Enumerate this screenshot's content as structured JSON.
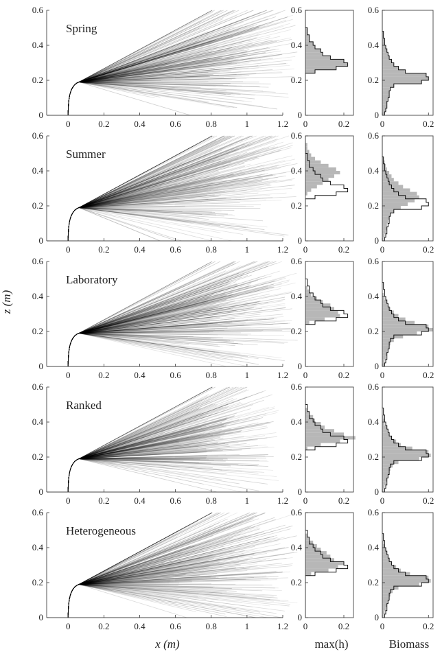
{
  "figure": {
    "ylabel": "z (m)",
    "xlabel": "x (m)",
    "hist_labels": [
      "max(h)",
      "Biomass"
    ]
  },
  "chart_data": [
    {
      "type": "line",
      "layout": "5x3 panel grid",
      "rows": [
        {
          "panel_label": "Spring",
          "spread": 1.0,
          "xmax_lines": 1.2
        },
        {
          "panel_label": "Summer",
          "spread": 1.1,
          "xmax_lines": 1.2
        },
        {
          "panel_label": "Laboratory",
          "spread": 0.9,
          "xmax_lines": 1.2
        },
        {
          "panel_label": "Ranked",
          "spread": 0.9,
          "xmax_lines": 1.1
        },
        {
          "panel_label": "Heterogeneous",
          "spread": 1.0,
          "xmax_lines": 1.2
        }
      ],
      "x": {
        "ticks": [
          "0",
          "0.2",
          "0.4",
          "0.6",
          "0.8",
          "1",
          "1.2"
        ],
        "range": [
          -0.12,
          1.2
        ]
      },
      "y": {
        "ticks": [
          "0",
          "0.2",
          "0.4",
          "0.6"
        ],
        "range": [
          0,
          0.6
        ]
      },
      "xlabel": "x (m)",
      "ylabel": "z (m)"
    },
    {
      "type": "bar",
      "orientation": "horizontal histogram",
      "panel": "max(h)",
      "x": {
        "ticks": [
          "0",
          "0.2"
        ],
        "range": [
          0,
          0.25
        ]
      },
      "y": {
        "ticks": [
          "0",
          "0.2",
          "0.4",
          "0.6"
        ],
        "range": [
          0,
          0.6
        ]
      },
      "bin_edges": [
        0.0,
        0.02,
        0.04,
        0.06,
        0.08,
        0.1,
        0.12,
        0.14,
        0.16,
        0.18,
        0.2,
        0.22,
        0.24,
        0.26,
        0.28,
        0.3,
        0.32,
        0.34,
        0.36,
        0.38,
        0.4,
        0.42,
        0.44,
        0.46,
        0.48,
        0.5,
        0.52,
        0.54,
        0.56,
        0.58,
        0.6
      ],
      "reference_counts": [
        0,
        0,
        0,
        0,
        0,
        0,
        0,
        0,
        0,
        0,
        0,
        0,
        0.05,
        0.16,
        0.22,
        0.2,
        0.13,
        0.09,
        0.08,
        0.05,
        0.04,
        0.02,
        0.02,
        0.01,
        0.01,
        0,
        0,
        0,
        0,
        0
      ],
      "series": [
        {
          "name": "Spring",
          "counts": [
            0,
            0,
            0,
            0,
            0,
            0,
            0,
            0,
            0,
            0,
            0,
            0,
            0.05,
            0.16,
            0.22,
            0.2,
            0.13,
            0.09,
            0.08,
            0.05,
            0.04,
            0.02,
            0.02,
            0.01,
            0.01,
            0,
            0,
            0,
            0,
            0
          ]
        },
        {
          "name": "Summer",
          "counts": [
            0,
            0,
            0,
            0,
            0,
            0,
            0,
            0,
            0,
            0,
            0,
            0,
            0,
            0.01,
            0.03,
            0.06,
            0.09,
            0.12,
            0.15,
            0.18,
            0.16,
            0.12,
            0.08,
            0.05,
            0.03,
            0.02,
            0.01,
            0.01,
            0,
            0
          ]
        },
        {
          "name": "Laboratory",
          "counts": [
            0,
            0,
            0,
            0,
            0,
            0,
            0,
            0,
            0,
            0,
            0,
            0,
            0.02,
            0.1,
            0.18,
            0.17,
            0.15,
            0.13,
            0.09,
            0.06,
            0.03,
            0.02,
            0.01,
            0,
            0,
            0,
            0,
            0,
            0,
            0
          ]
        },
        {
          "name": "Ranked",
          "counts": [
            0,
            0,
            0,
            0,
            0,
            0,
            0,
            0,
            0,
            0,
            0,
            0,
            0.01,
            0.08,
            0.18,
            0.26,
            0.2,
            0.15,
            0.1,
            0.08,
            0.05,
            0.04,
            0.02,
            0.01,
            0,
            0,
            0,
            0,
            0,
            0
          ]
        },
        {
          "name": "Heterogeneous",
          "counts": [
            0,
            0,
            0,
            0,
            0,
            0,
            0,
            0,
            0,
            0,
            0,
            0,
            0.03,
            0.12,
            0.17,
            0.2,
            0.15,
            0.13,
            0.11,
            0.08,
            0.06,
            0.04,
            0.02,
            0.01,
            0,
            0,
            0,
            0,
            0,
            0
          ]
        }
      ]
    },
    {
      "type": "bar",
      "orientation": "horizontal histogram",
      "panel": "Biomass",
      "x": {
        "ticks": [
          "0",
          "0.2"
        ],
        "range": [
          0,
          0.22
        ]
      },
      "y": {
        "ticks": [
          "0",
          "0.2",
          "0.4",
          "0.6"
        ],
        "range": [
          0,
          0.6
        ]
      },
      "bin_edges": [
        0.0,
        0.02,
        0.04,
        0.06,
        0.08,
        0.1,
        0.12,
        0.14,
        0.16,
        0.18,
        0.2,
        0.22,
        0.24,
        0.26,
        0.28,
        0.3,
        0.32,
        0.34,
        0.36,
        0.38,
        0.4,
        0.42,
        0.44,
        0.46,
        0.48,
        0.5,
        0.52,
        0.54,
        0.56,
        0.58,
        0.6
      ],
      "reference_counts": [
        0.01,
        0.015,
        0.02,
        0.02,
        0.025,
        0.03,
        0.03,
        0.035,
        0.05,
        0.17,
        0.2,
        0.19,
        0.1,
        0.07,
        0.05,
        0.04,
        0.03,
        0.025,
        0.02,
        0.015,
        0.01,
        0.01,
        0.005,
        0.005,
        0,
        0,
        0,
        0,
        0,
        0
      ],
      "series": [
        {
          "name": "Spring",
          "counts": [
            0.01,
            0.015,
            0.02,
            0.02,
            0.025,
            0.03,
            0.03,
            0.035,
            0.05,
            0.17,
            0.2,
            0.19,
            0.1,
            0.07,
            0.05,
            0.04,
            0.03,
            0.025,
            0.02,
            0.015,
            0.01,
            0.01,
            0.005,
            0.005,
            0,
            0,
            0,
            0,
            0,
            0
          ]
        },
        {
          "name": "Summer",
          "counts": [
            0.005,
            0.01,
            0.015,
            0.02,
            0.02,
            0.025,
            0.03,
            0.035,
            0.05,
            0.08,
            0.11,
            0.14,
            0.16,
            0.15,
            0.12,
            0.09,
            0.07,
            0.05,
            0.04,
            0.03,
            0.02,
            0.015,
            0.01,
            0.005,
            0,
            0,
            0,
            0,
            0,
            0
          ]
        },
        {
          "name": "Laboratory",
          "counts": [
            0.01,
            0.01,
            0.015,
            0.02,
            0.025,
            0.03,
            0.035,
            0.05,
            0.09,
            0.15,
            0.22,
            0.2,
            0.14,
            0.1,
            0.07,
            0.05,
            0.035,
            0.025,
            0.02,
            0.01,
            0.005,
            0,
            0,
            0,
            0,
            0,
            0,
            0,
            0,
            0
          ]
        },
        {
          "name": "Ranked",
          "counts": [
            0.005,
            0.01,
            0.015,
            0.02,
            0.025,
            0.03,
            0.035,
            0.045,
            0.07,
            0.16,
            0.21,
            0.2,
            0.13,
            0.08,
            0.06,
            0.04,
            0.03,
            0.025,
            0.02,
            0.01,
            0.01,
            0.005,
            0,
            0,
            0,
            0,
            0,
            0,
            0,
            0
          ]
        },
        {
          "name": "Heterogeneous",
          "counts": [
            0.005,
            0.01,
            0.015,
            0.02,
            0.025,
            0.03,
            0.035,
            0.045,
            0.07,
            0.16,
            0.21,
            0.2,
            0.12,
            0.08,
            0.06,
            0.04,
            0.03,
            0.025,
            0.02,
            0.015,
            0.01,
            0.005,
            0,
            0,
            0,
            0,
            0,
            0,
            0,
            0
          ]
        }
      ]
    }
  ]
}
